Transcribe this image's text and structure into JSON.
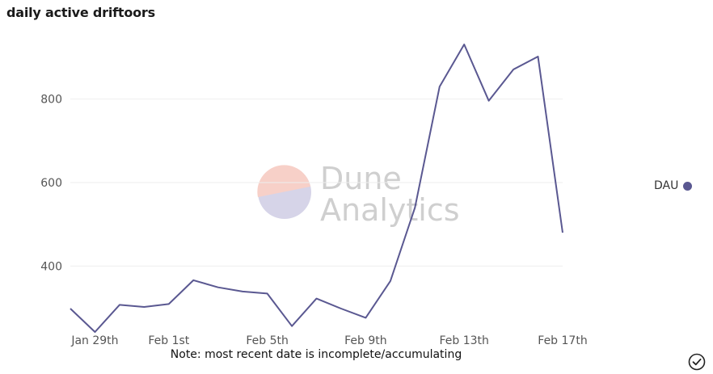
{
  "title": "daily active driftoors",
  "note": "Note: most recent date is incomplete/accumulating",
  "watermark": {
    "line1": "Dune",
    "line2": "Analytics"
  },
  "legend": {
    "label": "DAU",
    "color": "#5a5891"
  },
  "colors": {
    "line": "#5a5891",
    "grid": "#eeeeee",
    "watermark_top": "#f7d0c8",
    "watermark_bottom": "#d6d4e8"
  },
  "icons": {
    "corner": "check-circle-icon"
  },
  "chart_data": {
    "type": "line",
    "title": "daily active driftoors",
    "xlabel": "",
    "ylabel": "",
    "x": [
      "Jan 28th",
      "Jan 29th",
      "Jan 30th",
      "Jan 31st",
      "Feb 1st",
      "Feb 2nd",
      "Feb 3rd",
      "Feb 4th",
      "Feb 5th",
      "Feb 6th",
      "Feb 7th",
      "Feb 8th",
      "Feb 9th",
      "Feb 10th",
      "Feb 11th",
      "Feb 12th",
      "Feb 13th",
      "Feb 14th",
      "Feb 15th",
      "Feb 16th",
      "Feb 17th"
    ],
    "x_tick_labels": [
      "Jan 29th",
      "Feb 1st",
      "Feb 5th",
      "Feb 9th",
      "Feb 13th",
      "Feb 17th"
    ],
    "y_tick_labels": [
      "400",
      "600",
      "800"
    ],
    "y_ticks": [
      400,
      600,
      800
    ],
    "ylim": [
      240,
      960
    ],
    "grid": true,
    "legend_position": "right",
    "series": [
      {
        "name": "DAU",
        "color": "#5a5891",
        "values": [
          298,
          242,
          307,
          302,
          309,
          366,
          349,
          339,
          334,
          256,
          322,
          298,
          276,
          364,
          540,
          830,
          931,
          796,
          871,
          902,
          480
        ]
      }
    ]
  }
}
